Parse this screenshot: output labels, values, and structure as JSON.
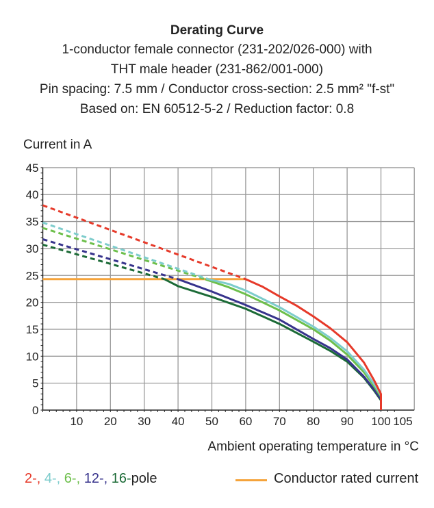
{
  "chart_data": {
    "type": "line",
    "title": "Derating Curve",
    "subtitle": [
      "1-conductor female connector (231-202/026-000) with",
      "THT male header (231-862/001-000)",
      "Pin spacing: 7.5 mm / Conductor cross-section: 2.5 mm² \"f-st\"",
      "Based on: EN 60512-5-2 / Reduction factor: 0.8"
    ],
    "xlabel": "Ambient operating temperature in °C",
    "ylabel": "Current in A",
    "xlim": [
      0,
      105
    ],
    "ylim": [
      0,
      45
    ],
    "xticks": [
      10,
      20,
      30,
      40,
      50,
      60,
      70,
      80,
      90,
      100,
      105
    ],
    "yticks": [
      0,
      5,
      10,
      15,
      20,
      25,
      30,
      35,
      40,
      45
    ],
    "grid": true,
    "legend_placement": "bottom",
    "legend_poles": [
      {
        "text": "2-,",
        "color": "#e63a2a"
      },
      {
        "text": " 4-,",
        "color": "#7dcccc"
      },
      {
        "text": " 6-,",
        "color": "#6dbf4b"
      },
      {
        "text": " 12-,",
        "color": "#37338c"
      },
      {
        "text": " 16-",
        "color": "#1b6a36"
      },
      {
        "text": "pole",
        "color": "#222222"
      }
    ],
    "series": [
      {
        "name": "2-pole",
        "color": "#e63a2a",
        "dashed": [
          [
            0,
            38
          ],
          [
            60,
            24.3
          ]
        ],
        "solid": [
          [
            60,
            24.3
          ],
          [
            65,
            22.9
          ],
          [
            70,
            21.1
          ],
          [
            75,
            19.4
          ],
          [
            80,
            17.4
          ],
          [
            85,
            15.2
          ],
          [
            90,
            12.6
          ],
          [
            95,
            8.8
          ],
          [
            98,
            5.5
          ],
          [
            100,
            3
          ],
          [
            100,
            0
          ]
        ]
      },
      {
        "name": "4-pole",
        "color": "#7dcccc",
        "dashed": [
          [
            0,
            34.8
          ],
          [
            49,
            24.3
          ]
        ],
        "solid": [
          [
            49,
            24.3
          ],
          [
            55,
            23.4
          ],
          [
            60,
            22.2
          ],
          [
            70,
            19.1
          ],
          [
            80,
            15.5
          ],
          [
            85,
            13.4
          ],
          [
            90,
            10.9
          ],
          [
            95,
            7.5
          ],
          [
            98,
            4.8
          ],
          [
            100,
            2.8
          ],
          [
            100,
            0
          ]
        ]
      },
      {
        "name": "6-pole",
        "color": "#6dbf4b",
        "dashed": [
          [
            0,
            33.8
          ],
          [
            48,
            24.3
          ]
        ],
        "solid": [
          [
            48,
            24.3
          ],
          [
            55,
            22.8
          ],
          [
            60,
            21.5
          ],
          [
            70,
            18.5
          ],
          [
            80,
            15
          ],
          [
            85,
            12.9
          ],
          [
            90,
            10.3
          ],
          [
            95,
            7
          ],
          [
            98,
            4.4
          ],
          [
            100,
            2.5
          ],
          [
            100,
            0
          ]
        ]
      },
      {
        "name": "12-pole",
        "color": "#37338c",
        "dashed": [
          [
            0,
            31.7
          ],
          [
            40,
            24.3
          ]
        ],
        "solid": [
          [
            40,
            24.3
          ],
          [
            50,
            22
          ],
          [
            60,
            19.5
          ],
          [
            70,
            16.8
          ],
          [
            80,
            13.2
          ],
          [
            85,
            11.5
          ],
          [
            90,
            9.4
          ],
          [
            95,
            6.2
          ],
          [
            98,
            3.8
          ],
          [
            100,
            2
          ],
          [
            100,
            0
          ]
        ]
      },
      {
        "name": "16-pole",
        "color": "#1b6a36",
        "dashed": [
          [
            0,
            30.7
          ],
          [
            36,
            24.3
          ]
        ],
        "solid": [
          [
            36,
            24.3
          ],
          [
            40,
            23
          ],
          [
            50,
            21
          ],
          [
            60,
            18.8
          ],
          [
            70,
            16
          ],
          [
            80,
            12.7
          ],
          [
            85,
            11
          ],
          [
            90,
            9
          ],
          [
            95,
            6
          ],
          [
            98,
            3.6
          ],
          [
            100,
            1.8
          ],
          [
            100,
            0
          ]
        ]
      },
      {
        "name": "Conductor rated current",
        "color": "#f5a33a",
        "solid": [
          [
            0,
            24.3
          ],
          [
            60,
            24.3
          ]
        ]
      }
    ],
    "legend_rated": "Conductor rated current"
  }
}
